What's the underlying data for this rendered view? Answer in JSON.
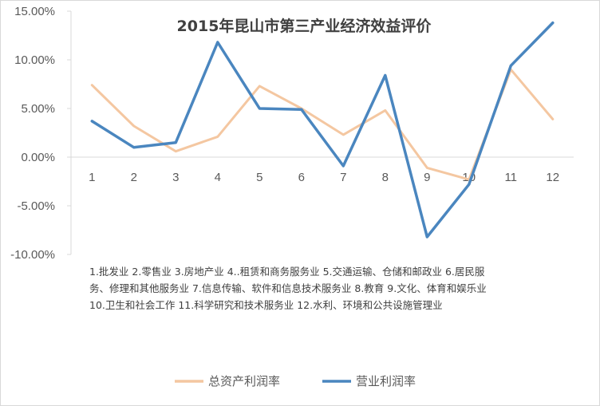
{
  "chart_data": {
    "type": "line",
    "title": "2015年昆山市第三产业经济效益评价",
    "categories": [
      "1",
      "2",
      "3",
      "4",
      "5",
      "6",
      "7",
      "8",
      "9",
      "10",
      "11",
      "12"
    ],
    "y_tick_labels": [
      "15.00%",
      "10.00%",
      "5.00%",
      "0.00%",
      "-5.00%",
      "-10.00%"
    ],
    "ylim": [
      -10,
      15
    ],
    "series": [
      {
        "name": "总资产利润率",
        "color": "#F4C7A1",
        "values": [
          7.4,
          3.2,
          0.6,
          2.1,
          7.3,
          5.0,
          2.3,
          4.8,
          -1.1,
          -2.3,
          9.0,
          3.9
        ]
      },
      {
        "name": "营业利润率",
        "color": "#4A86BF",
        "values": [
          3.7,
          1.0,
          1.5,
          11.8,
          5.0,
          4.9,
          -0.9,
          8.4,
          -8.2,
          -2.8,
          9.4,
          13.8
        ]
      }
    ],
    "note_lines": [
      "1.批发业 2.零售业 3.房地产业 4..租赁和商务服务业 5.交通运输、仓储和邮政业 6.居民服",
      "务、修理和其他服务业 7.信息传输、软件和信息技术服务业 8.教育 9.文化、体育和娱乐业",
      "10.卫生和社会工作 11.科学研究和技术服务业 12.水利、环境和公共设施管理业"
    ]
  }
}
